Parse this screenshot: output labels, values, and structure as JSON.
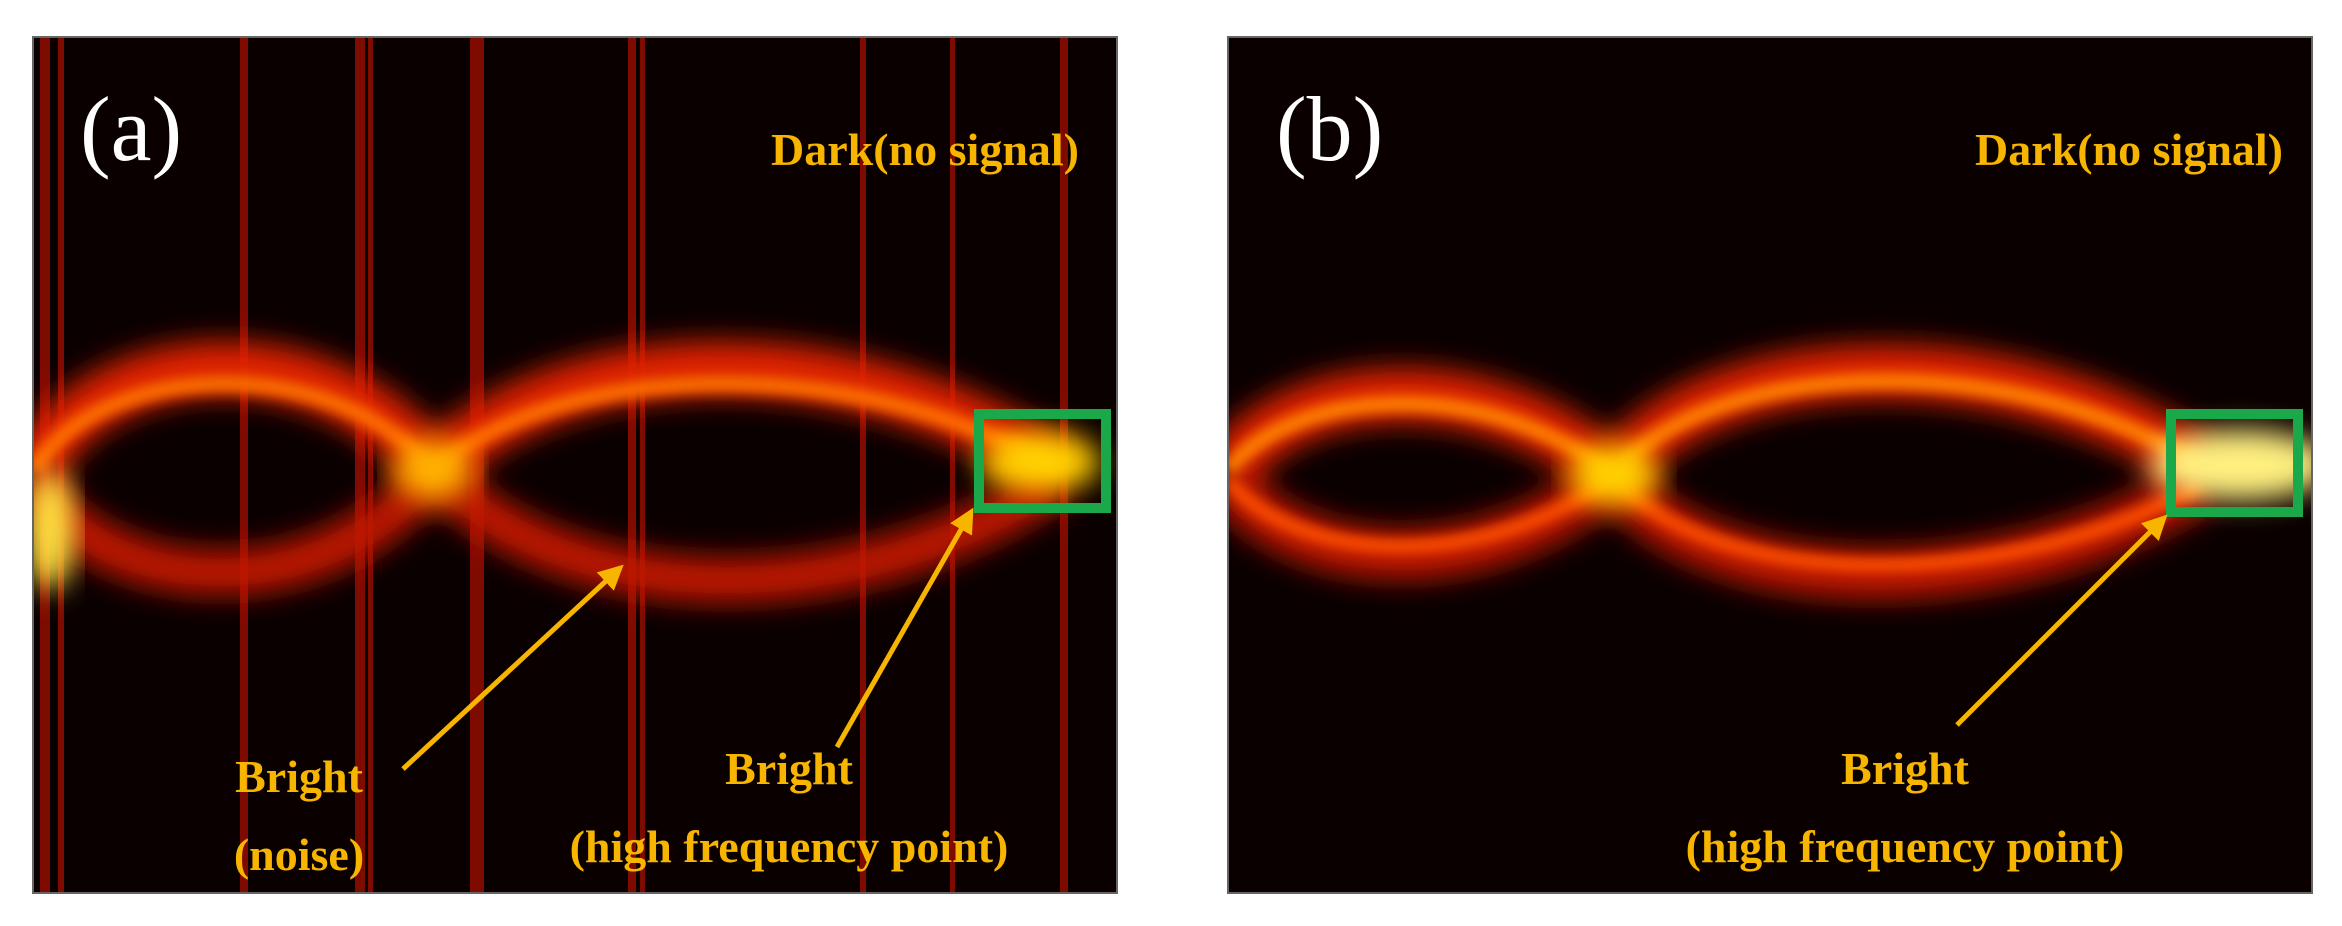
{
  "panels": [
    {
      "label": "(a)",
      "dark_label": "Dark(no signal)",
      "noise_label": [
        "Bright",
        "(noise)"
      ],
      "point_label": [
        "Bright",
        "(high frequency point)"
      ]
    },
    {
      "label": "(b)",
      "dark_label": "Dark(no signal)",
      "point_label": [
        "Bright",
        "(high frequency point)"
      ]
    }
  ]
}
